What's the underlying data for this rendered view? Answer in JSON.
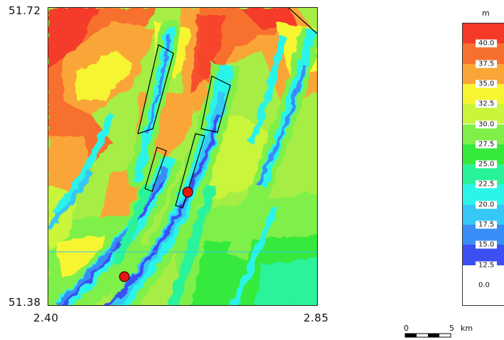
{
  "axes": {
    "y_top": "51.72",
    "y_bottom": "51.38",
    "x_left": "2.40",
    "x_right": "2.85"
  },
  "legend": {
    "unit": "m",
    "levels": [
      "40.0",
      "37.5",
      "35.0",
      "32.5",
      "30.0",
      "27.5",
      "25.0",
      "22.5",
      "20.0",
      "17.5",
      "15.0",
      "12.5",
      "0.0"
    ],
    "colors": [
      "#f53a2a",
      "#f8702e",
      "#faa537",
      "#f7f531",
      "#c9f53b",
      "#7ef048",
      "#36ea3c",
      "#29f39a",
      "#2cf4e8",
      "#35c7f5",
      "#3a8df6",
      "#3b4ff3",
      "#ffffff"
    ]
  },
  "scalebar": {
    "start": "0",
    "end": "5",
    "unit": "km"
  },
  "markers": {
    "color": "#e8140e"
  }
}
